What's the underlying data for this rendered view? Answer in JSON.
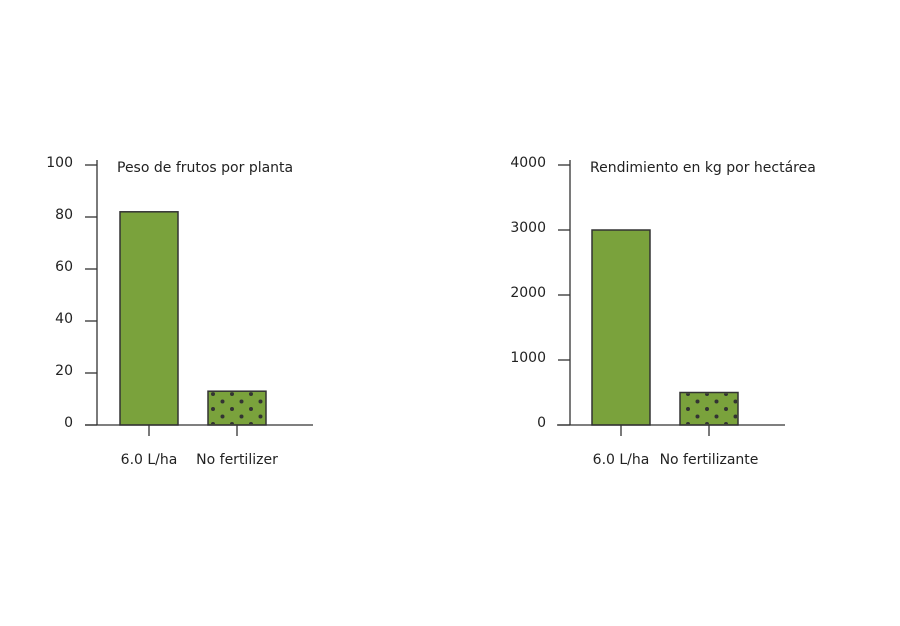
{
  "chart_data": [
    {
      "type": "bar",
      "title": "Peso de frutos por planta",
      "categories": [
        "6.0 L/ha",
        "No fertilizer"
      ],
      "values": [
        82,
        13
      ],
      "color": "#7aa23c",
      "bar_patterns": [
        "solid",
        "dots"
      ],
      "ylim": [
        0,
        100
      ],
      "yticks": [
        0,
        20,
        40,
        60,
        80,
        100
      ]
    },
    {
      "type": "bar",
      "title": "Rendimiento en kg por hectárea",
      "categories": [
        "6.0 L/ha",
        "No fertilizante"
      ],
      "values": [
        3000,
        500
      ],
      "color": "#7aa23c",
      "bar_patterns": [
        "solid",
        "dots"
      ],
      "ylim": [
        0,
        4000
      ],
      "yticks": [
        0,
        1000,
        2000,
        3000,
        4000
      ]
    }
  ]
}
